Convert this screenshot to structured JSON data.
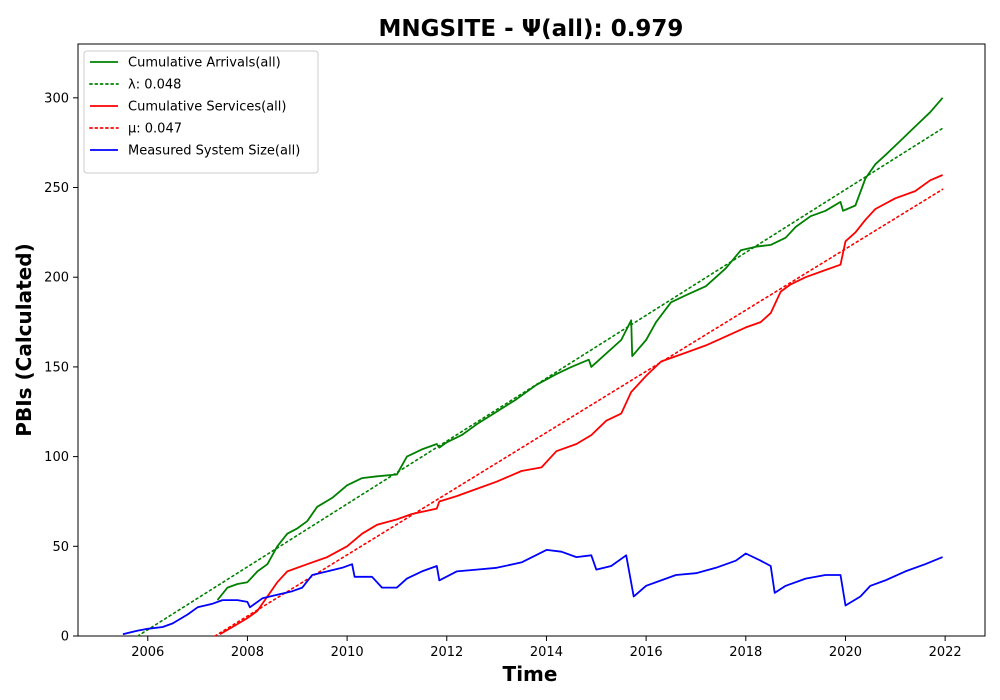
{
  "chart_data": {
    "type": "line",
    "title": "MNGSITE -  Ψ(all): 0.979",
    "xlabel": "Time",
    "ylabel": "PBIs (Calculated)",
    "xlim": [
      2004.6,
      2022.8
    ],
    "ylim": [
      0,
      330
    ],
    "xticks": [
      2006,
      2008,
      2010,
      2012,
      2014,
      2016,
      2018,
      2020,
      2022
    ],
    "yticks": [
      0,
      50,
      100,
      150,
      200,
      250,
      300
    ],
    "grid": false,
    "legend_position": "upper-left",
    "series": [
      {
        "name": "Cumulative Arrivals(all)",
        "color": "#008000",
        "style": "solid",
        "points": [
          [
            2007.4,
            20
          ],
          [
            2007.6,
            27
          ],
          [
            2007.8,
            29
          ],
          [
            2008.0,
            30
          ],
          [
            2008.2,
            36
          ],
          [
            2008.4,
            40
          ],
          [
            2008.6,
            50
          ],
          [
            2008.8,
            57
          ],
          [
            2009.0,
            60
          ],
          [
            2009.2,
            64
          ],
          [
            2009.4,
            72
          ],
          [
            2009.7,
            77
          ],
          [
            2010.0,
            84
          ],
          [
            2010.3,
            88
          ],
          [
            2010.6,
            89
          ],
          [
            2011.0,
            90
          ],
          [
            2011.2,
            100
          ],
          [
            2011.5,
            104
          ],
          [
            2011.8,
            107
          ],
          [
            2011.85,
            105
          ],
          [
            2012.0,
            108
          ],
          [
            2012.3,
            112
          ],
          [
            2012.6,
            118
          ],
          [
            2013.0,
            125
          ],
          [
            2013.4,
            132
          ],
          [
            2013.8,
            140
          ],
          [
            2014.2,
            146
          ],
          [
            2014.5,
            150
          ],
          [
            2014.85,
            154
          ],
          [
            2014.9,
            150
          ],
          [
            2015.1,
            155
          ],
          [
            2015.5,
            165
          ],
          [
            2015.7,
            176
          ],
          [
            2015.72,
            156
          ],
          [
            2016.0,
            165
          ],
          [
            2016.2,
            175
          ],
          [
            2016.5,
            186
          ],
          [
            2016.8,
            190
          ],
          [
            2017.2,
            195
          ],
          [
            2017.6,
            205
          ],
          [
            2017.9,
            215
          ],
          [
            2018.2,
            217
          ],
          [
            2018.5,
            218
          ],
          [
            2018.8,
            222
          ],
          [
            2019.0,
            228
          ],
          [
            2019.3,
            234
          ],
          [
            2019.6,
            237
          ],
          [
            2019.9,
            242
          ],
          [
            2019.95,
            237
          ],
          [
            2020.2,
            240
          ],
          [
            2020.4,
            255
          ],
          [
            2020.6,
            263
          ],
          [
            2020.8,
            268
          ],
          [
            2021.1,
            276
          ],
          [
            2021.4,
            284
          ],
          [
            2021.7,
            292
          ],
          [
            2021.95,
            300
          ]
        ]
      },
      {
        "name": "λ: 0.048",
        "color": "#008000",
        "style": "dotted",
        "points": [
          [
            2005.8,
            0
          ],
          [
            2021.95,
            283
          ]
        ]
      },
      {
        "name": "Cumulative Services(all)",
        "color": "#ff0000",
        "style": "solid",
        "points": [
          [
            2007.45,
            1
          ],
          [
            2007.7,
            5
          ],
          [
            2008.0,
            10
          ],
          [
            2008.2,
            14
          ],
          [
            2008.4,
            22
          ],
          [
            2008.6,
            30
          ],
          [
            2008.8,
            36
          ],
          [
            2009.2,
            40
          ],
          [
            2009.6,
            44
          ],
          [
            2010.0,
            50
          ],
          [
            2010.3,
            57
          ],
          [
            2010.6,
            62
          ],
          [
            2011.0,
            65
          ],
          [
            2011.3,
            68
          ],
          [
            2011.8,
            71
          ],
          [
            2011.85,
            75
          ],
          [
            2012.2,
            78
          ],
          [
            2012.6,
            82
          ],
          [
            2013.0,
            86
          ],
          [
            2013.5,
            92
          ],
          [
            2013.9,
            94
          ],
          [
            2014.2,
            103
          ],
          [
            2014.6,
            107
          ],
          [
            2014.9,
            112
          ],
          [
            2015.2,
            120
          ],
          [
            2015.5,
            124
          ],
          [
            2015.7,
            136
          ],
          [
            2016.0,
            145
          ],
          [
            2016.3,
            153
          ],
          [
            2016.8,
            158
          ],
          [
            2017.2,
            162
          ],
          [
            2017.6,
            167
          ],
          [
            2018.0,
            172
          ],
          [
            2018.3,
            175
          ],
          [
            2018.5,
            180
          ],
          [
            2018.7,
            192
          ],
          [
            2018.9,
            196
          ],
          [
            2019.2,
            200
          ],
          [
            2019.6,
            204
          ],
          [
            2019.9,
            207
          ],
          [
            2020.0,
            220
          ],
          [
            2020.2,
            225
          ],
          [
            2020.4,
            232
          ],
          [
            2020.6,
            238
          ],
          [
            2021.0,
            244
          ],
          [
            2021.4,
            248
          ],
          [
            2021.7,
            254
          ],
          [
            2021.95,
            257
          ]
        ]
      },
      {
        "name": "μ: 0.047",
        "color": "#ff0000",
        "style": "dotted",
        "points": [
          [
            2007.35,
            0
          ],
          [
            2021.95,
            249
          ]
        ]
      },
      {
        "name": "Measured System Size(all)",
        "color": "#0000ff",
        "style": "solid",
        "points": [
          [
            2005.5,
            1
          ],
          [
            2005.8,
            3
          ],
          [
            2006.0,
            4
          ],
          [
            2006.3,
            5
          ],
          [
            2006.5,
            7
          ],
          [
            2006.8,
            12
          ],
          [
            2007.0,
            16
          ],
          [
            2007.3,
            18
          ],
          [
            2007.5,
            20
          ],
          [
            2007.8,
            20
          ],
          [
            2008.0,
            19
          ],
          [
            2008.05,
            16
          ],
          [
            2008.3,
            21
          ],
          [
            2008.6,
            23
          ],
          [
            2008.9,
            25
          ],
          [
            2009.1,
            27
          ],
          [
            2009.3,
            34
          ],
          [
            2009.6,
            36
          ],
          [
            2009.9,
            38
          ],
          [
            2010.1,
            40
          ],
          [
            2010.15,
            33
          ],
          [
            2010.5,
            33
          ],
          [
            2010.7,
            27
          ],
          [
            2011.0,
            27
          ],
          [
            2011.2,
            32
          ],
          [
            2011.5,
            36
          ],
          [
            2011.8,
            39
          ],
          [
            2011.85,
            31
          ],
          [
            2012.2,
            36
          ],
          [
            2012.6,
            37
          ],
          [
            2013.0,
            38
          ],
          [
            2013.5,
            41
          ],
          [
            2014.0,
            48
          ],
          [
            2014.3,
            47
          ],
          [
            2014.6,
            44
          ],
          [
            2014.9,
            45
          ],
          [
            2015.0,
            37
          ],
          [
            2015.3,
            39
          ],
          [
            2015.6,
            45
          ],
          [
            2015.75,
            22
          ],
          [
            2016.0,
            28
          ],
          [
            2016.3,
            31
          ],
          [
            2016.6,
            34
          ],
          [
            2017.0,
            35
          ],
          [
            2017.4,
            38
          ],
          [
            2017.8,
            42
          ],
          [
            2018.0,
            46
          ],
          [
            2018.3,
            42
          ],
          [
            2018.5,
            39
          ],
          [
            2018.58,
            24
          ],
          [
            2018.8,
            28
          ],
          [
            2019.2,
            32
          ],
          [
            2019.6,
            34
          ],
          [
            2019.9,
            34
          ],
          [
            2020.0,
            17
          ],
          [
            2020.3,
            22
          ],
          [
            2020.5,
            28
          ],
          [
            2020.8,
            31
          ],
          [
            2021.2,
            36
          ],
          [
            2021.6,
            40
          ],
          [
            2021.95,
            44
          ]
        ]
      }
    ]
  }
}
